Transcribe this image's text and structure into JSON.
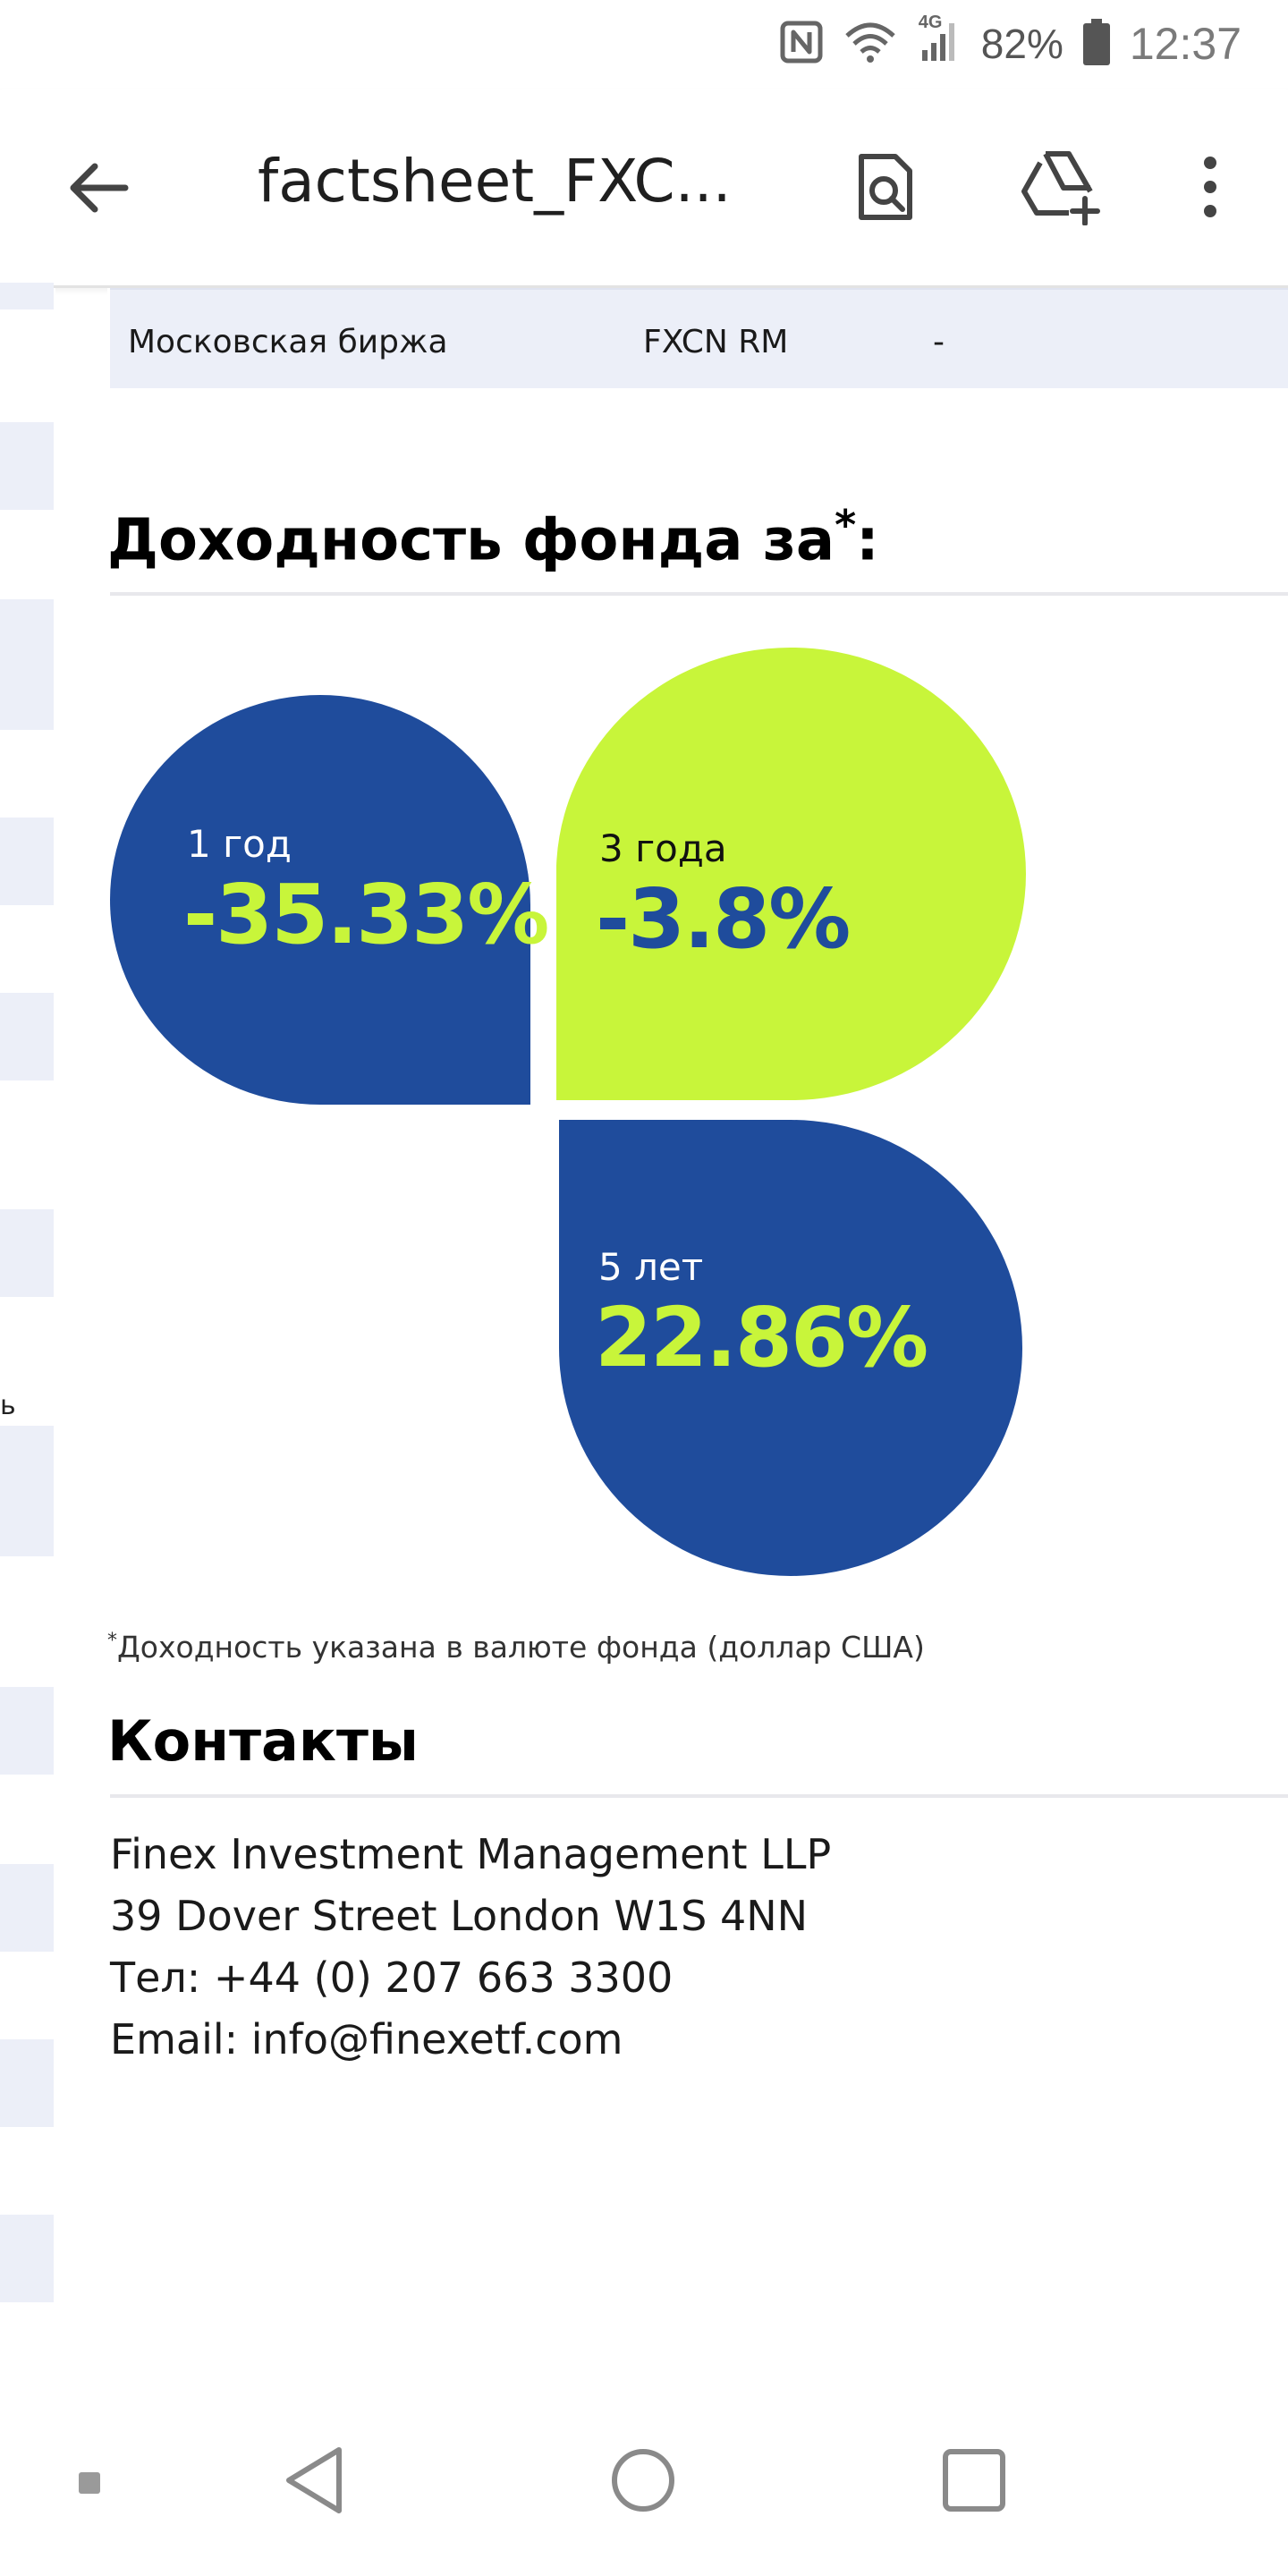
{
  "status_bar": {
    "nfc_icon": "nfc-icon",
    "wifi_icon": "wifi-icon",
    "signal_label": "4G",
    "battery_percent": "82%",
    "time": "12:37"
  },
  "app_bar": {
    "title": "factsheet_FXC...",
    "back_icon": "arrow-back-icon",
    "actions": [
      "find-in-document-icon",
      "add-to-drive-icon",
      "more-vert-icon"
    ]
  },
  "listing_row": {
    "exchange": "Московская биржа",
    "ticker": "FXCN RM",
    "extra": "-"
  },
  "returns_section": {
    "title": "Доходность фонда за",
    "title_mark": "*",
    "title_colon": ":",
    "colors": {
      "navy": "#1f4c9c",
      "lime": "#c8f53a"
    },
    "items": [
      {
        "label": "1 год",
        "value": "-35.33%",
        "numeric": -35.33
      },
      {
        "label": "3 года",
        "value": "-3.8%",
        "numeric": -3.8
      },
      {
        "label": "5 лет",
        "value": "22.86%",
        "numeric": 22.86
      }
    ],
    "footnote_mark": "*",
    "footnote": "Доходность указана в валюте фонда (доллар США)"
  },
  "contacts": {
    "title": "Контакты",
    "company": "Finex Investment Management LLP",
    "address": "39 Dover Street London W1S 4NN",
    "phone": "Тел: +44 (0) 207 663 3300",
    "email": "Email: info@finexetf.com"
  },
  "left_page": {
    "edge_mark": "ь"
  },
  "nav_bar": {
    "items": [
      "back-triangle-icon",
      "home-circle-icon",
      "recents-square-icon"
    ]
  }
}
